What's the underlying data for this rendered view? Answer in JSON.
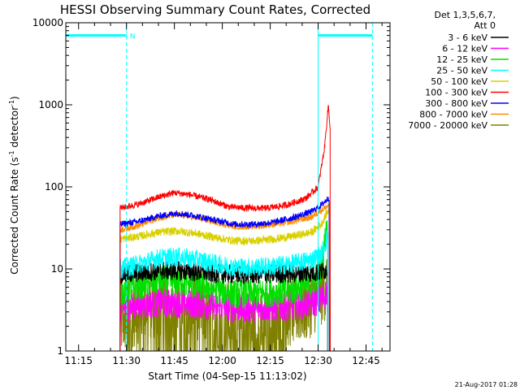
{
  "chart_data": {
    "type": "line",
    "title": "HESSI Observing Summary Count Rates, Corrected",
    "xlabel": "Start Time (04-Sep-15 11:13:02)",
    "ylabel_main": "Corrected Count Rate (s",
    "ylabel_sup1": "-1",
    "ylabel_mid": " detector",
    "ylabel_sup2": "-1",
    "ylabel_end": ")",
    "x_range_minutes": [
      11.0,
      112.5
    ],
    "y_range": [
      1,
      10000
    ],
    "y_scale": "log",
    "x_ticks": [
      {
        "label": "11:15",
        "minutes": 15
      },
      {
        "label": "11:30",
        "minutes": 30
      },
      {
        "label": "11:45",
        "minutes": 45
      },
      {
        "label": "12:00",
        "minutes": 60
      },
      {
        "label": "12:15",
        "minutes": 75
      },
      {
        "label": "12:30",
        "minutes": 90
      },
      {
        "label": "12:45",
        "minutes": 105
      }
    ],
    "y_ticks": [
      {
        "label": "1",
        "value": 1
      },
      {
        "label": "10",
        "value": 10
      },
      {
        "label": "100",
        "value": 100
      },
      {
        "label": "1000",
        "value": 1000
      },
      {
        "label": "10000",
        "value": 10000
      }
    ],
    "legend": {
      "placement": "right",
      "header_line1": "Det 1,3,5,6,7,",
      "header_line2": "Att 0",
      "entries": [
        {
          "label": "3 - 6 keV",
          "color": "#000000"
        },
        {
          "label": "6 - 12 keV",
          "color": "#ff00ff"
        },
        {
          "label": "12 - 25 keV",
          "color": "#00e000"
        },
        {
          "label": "25 - 50 keV",
          "color": "#00ffff"
        },
        {
          "label": "50 - 100 keV",
          "color": "#d8d000"
        },
        {
          "label": "100 - 300 keV",
          "color": "#ff0000"
        },
        {
          "label": "300 - 800 keV",
          "color": "#0000ff"
        },
        {
          "label": "800 - 7000 keV",
          "color": "#ff8c00"
        },
        {
          "label": "7000 - 20000 keV",
          "color": "#808000"
        }
      ]
    },
    "night_intervals": [
      {
        "start": 11.0,
        "end": 30.0,
        "label": "N"
      },
      {
        "start": 90.0,
        "end": 107.0,
        "label": ""
      }
    ],
    "night_color": "#00ffff",
    "night_level": 7000,
    "data_start": 28.0,
    "data_end": 93.5,
    "series": [
      {
        "color": "#808000",
        "points": [
          [
            28,
            2.2
          ],
          [
            34,
            3.5
          ],
          [
            40,
            4.0
          ],
          [
            46,
            4.0
          ],
          [
            52,
            3.8
          ],
          [
            56,
            3.0
          ],
          [
            62,
            2.6
          ],
          [
            66,
            2.0
          ],
          [
            72,
            1.8
          ],
          [
            78,
            2.8
          ],
          [
            86,
            3.5
          ],
          [
            90,
            5.0
          ],
          [
            93,
            7.0
          ]
        ],
        "noise": 0.45,
        "floor_spikes": true
      },
      {
        "color": "#ff00ff",
        "points": [
          [
            28,
            3.3
          ],
          [
            34,
            3.6
          ],
          [
            40,
            3.8
          ],
          [
            46,
            3.8
          ],
          [
            52,
            3.7
          ],
          [
            58,
            3.5
          ],
          [
            64,
            3.3
          ],
          [
            70,
            3.3
          ],
          [
            76,
            3.4
          ],
          [
            82,
            3.5
          ],
          [
            88,
            3.8
          ],
          [
            91,
            4.2
          ],
          [
            93,
            5.5
          ]
        ],
        "noise": 0.18,
        "floor_spikes": false
      },
      {
        "color": "#00e000",
        "points": [
          [
            28,
            5.3
          ],
          [
            34,
            6.2
          ],
          [
            40,
            7.2
          ],
          [
            46,
            7.0
          ],
          [
            52,
            6.4
          ],
          [
            58,
            5.6
          ],
          [
            64,
            5.0
          ],
          [
            70,
            5.0
          ],
          [
            76,
            5.2
          ],
          [
            82,
            5.5
          ],
          [
            88,
            6.5
          ],
          [
            91,
            10
          ],
          [
            93,
            40
          ]
        ],
        "noise": 0.18,
        "floor_spikes": false
      },
      {
        "color": "#000000",
        "points": [
          [
            28,
            8.5
          ],
          [
            34,
            9.0
          ],
          [
            40,
            9.5
          ],
          [
            46,
            9.5
          ],
          [
            52,
            9.2
          ],
          [
            58,
            8.8
          ],
          [
            64,
            8.6
          ],
          [
            70,
            8.6
          ],
          [
            76,
            8.7
          ],
          [
            82,
            8.8
          ],
          [
            88,
            9.0
          ],
          [
            91,
            9.2
          ],
          [
            93,
            10
          ]
        ],
        "noise": 0.12,
        "floor_spikes": false
      },
      {
        "color": "#00ffff",
        "points": [
          [
            28,
            10
          ],
          [
            34,
            11.5
          ],
          [
            40,
            13.5
          ],
          [
            46,
            14
          ],
          [
            52,
            13
          ],
          [
            58,
            11.5
          ],
          [
            64,
            10.5
          ],
          [
            70,
            10.5
          ],
          [
            76,
            10.8
          ],
          [
            82,
            11.5
          ],
          [
            88,
            13
          ],
          [
            91,
            15
          ],
          [
            93,
            25
          ]
        ],
        "noise": 0.12,
        "floor_spikes": false
      },
      {
        "color": "#d8d000",
        "points": [
          [
            28,
            23
          ],
          [
            34,
            25
          ],
          [
            40,
            28
          ],
          [
            46,
            29
          ],
          [
            52,
            27
          ],
          [
            58,
            24
          ],
          [
            64,
            22
          ],
          [
            70,
            22
          ],
          [
            76,
            23
          ],
          [
            82,
            25
          ],
          [
            88,
            28
          ],
          [
            91,
            35
          ],
          [
            93.5,
            55
          ]
        ],
        "noise": 0.05,
        "floor_spikes": false
      },
      {
        "color": "#ff8c00",
        "points": [
          [
            28,
            30
          ],
          [
            34,
            34
          ],
          [
            40,
            42
          ],
          [
            46,
            46
          ],
          [
            52,
            42
          ],
          [
            58,
            37
          ],
          [
            64,
            33
          ],
          [
            70,
            33
          ],
          [
            76,
            35
          ],
          [
            82,
            38
          ],
          [
            88,
            43
          ],
          [
            91,
            52
          ],
          [
            93.5,
            60
          ]
        ],
        "noise": 0.04,
        "floor_spikes": false
      },
      {
        "color": "#0000ff",
        "points": [
          [
            28,
            35
          ],
          [
            34,
            38
          ],
          [
            40,
            44
          ],
          [
            46,
            48
          ],
          [
            52,
            44
          ],
          [
            58,
            39
          ],
          [
            64,
            35
          ],
          [
            70,
            35
          ],
          [
            76,
            37
          ],
          [
            82,
            42
          ],
          [
            88,
            50
          ],
          [
            91,
            60
          ],
          [
            93.5,
            75
          ]
        ],
        "noise": 0.04,
        "floor_spikes": false
      },
      {
        "color": "#ff0000",
        "points": [
          [
            28,
            55
          ],
          [
            34,
            62
          ],
          [
            40,
            75
          ],
          [
            45,
            85
          ],
          [
            50,
            80
          ],
          [
            56,
            70
          ],
          [
            62,
            57
          ],
          [
            68,
            55
          ],
          [
            74,
            55
          ],
          [
            80,
            60
          ],
          [
            86,
            72
          ],
          [
            90,
            100
          ],
          [
            92,
            300
          ],
          [
            93.2,
            1000
          ],
          [
            93.8,
            500
          ]
        ],
        "noise": 0.04,
        "floor_spikes": false
      }
    ]
  },
  "footer": {
    "timestamp": "21-Aug-2017 01:28"
  }
}
